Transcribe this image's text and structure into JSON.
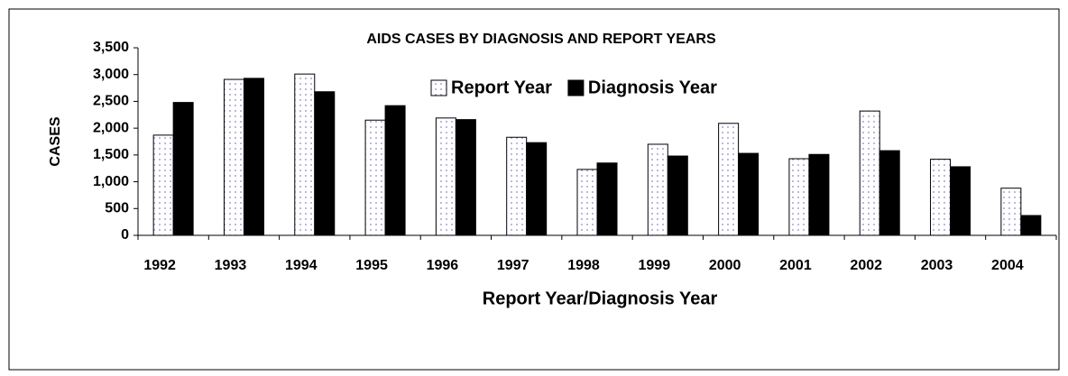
{
  "chart_data": {
    "type": "bar",
    "title": "AIDS CASES BY DIAGNOSIS AND REPORT YEARS",
    "x_label": "Report Year/Diagnosis Year",
    "y_label": "CASES",
    "categories": [
      "1992",
      "1993",
      "1994",
      "1995",
      "1996",
      "1997",
      "1998",
      "1999",
      "2000",
      "2001",
      "2002",
      "2003",
      "2004"
    ],
    "series": [
      {
        "name": "Report Year",
        "color": "#ffffff",
        "values": [
          1870,
          2910,
          3010,
          2150,
          2190,
          1830,
          1230,
          1700,
          2090,
          1430,
          2320,
          1420,
          880
        ]
      },
      {
        "name": "Diagnosis Year",
        "color": "#000000",
        "values": [
          2480,
          2930,
          2680,
          2420,
          2160,
          1730,
          1350,
          1480,
          1530,
          1510,
          1580,
          1280,
          370
        ]
      }
    ],
    "ylim": [
      0,
      3500
    ],
    "yticks": [
      0,
      500,
      {
        "value": 1000,
        "label": "1,000"
      },
      {
        "value": 1500,
        "label": "1,500"
      },
      {
        "value": 2000,
        "label": "2,000"
      },
      {
        "value": 2500,
        "label": "2,500"
      },
      {
        "value": 3000,
        "label": "3,000"
      },
      {
        "value": 3500,
        "label": "3,500"
      }
    ],
    "legend": "top"
  }
}
